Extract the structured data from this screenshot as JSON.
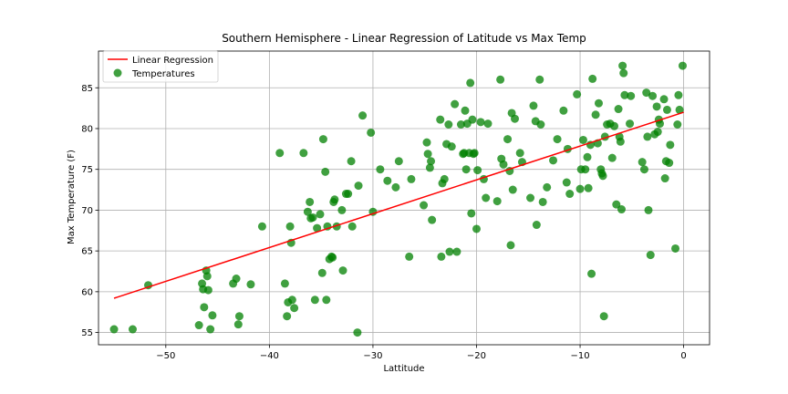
{
  "chart_data": {
    "type": "scatter",
    "title": "Southern Hemisphere - Linear Regression of Latitude vs Max Temp",
    "xlabel": "Lattitude",
    "ylabel": "Max Temperature (F)",
    "xlim": [
      -56.5,
      2.5
    ],
    "ylim": [
      53.5,
      89.5
    ],
    "xticks": [
      -50,
      -40,
      -30,
      -20,
      -10,
      0
    ],
    "yticks": [
      55,
      60,
      65,
      70,
      75,
      80,
      85
    ],
    "grid": true,
    "legend_position": "top-left",
    "legend": [
      "Linear Regression",
      "Temperatures"
    ],
    "colors": {
      "points": "#008000",
      "regression": "#ff0000"
    },
    "regression": {
      "x": [
        -55,
        0
      ],
      "y": [
        59.2,
        82.0
      ]
    },
    "series": [
      {
        "name": "Temperatures",
        "points": [
          [
            -55.0,
            55.4
          ],
          [
            -53.2,
            55.4
          ],
          [
            -51.7,
            60.8
          ],
          [
            -46.8,
            55.9
          ],
          [
            -46.5,
            61.0
          ],
          [
            -46.4,
            60.3
          ],
          [
            -46.3,
            58.1
          ],
          [
            -46.1,
            62.6
          ],
          [
            -46.0,
            61.9
          ],
          [
            -45.9,
            60.2
          ],
          [
            -45.7,
            55.4
          ],
          [
            -45.5,
            57.1
          ],
          [
            -43.5,
            61.0
          ],
          [
            -43.2,
            61.6
          ],
          [
            -43.0,
            56.0
          ],
          [
            -42.9,
            57.0
          ],
          [
            -41.8,
            60.9
          ],
          [
            -40.7,
            68.0
          ],
          [
            -39.0,
            77.0
          ],
          [
            -38.5,
            61.0
          ],
          [
            -38.3,
            57.0
          ],
          [
            -38.2,
            58.7
          ],
          [
            -38.0,
            68.0
          ],
          [
            -37.9,
            66.0
          ],
          [
            -37.8,
            59.0
          ],
          [
            -37.6,
            58.0
          ],
          [
            -36.7,
            77.0
          ],
          [
            -36.3,
            69.8
          ],
          [
            -36.1,
            71.0
          ],
          [
            -36.0,
            69.0
          ],
          [
            -35.8,
            69.1
          ],
          [
            -35.6,
            59.0
          ],
          [
            -35.4,
            67.8
          ],
          [
            -35.1,
            69.5
          ],
          [
            -34.9,
            62.3
          ],
          [
            -34.8,
            78.7
          ],
          [
            -34.6,
            74.7
          ],
          [
            -34.5,
            59.0
          ],
          [
            -34.4,
            68.0
          ],
          [
            -34.2,
            64.0
          ],
          [
            -34.0,
            64.3
          ],
          [
            -33.9,
            64.2
          ],
          [
            -33.8,
            71.0
          ],
          [
            -33.7,
            71.3
          ],
          [
            -33.5,
            68.0
          ],
          [
            -33.0,
            70.0
          ],
          [
            -32.9,
            62.6
          ],
          [
            -32.6,
            72.0
          ],
          [
            -32.4,
            72.0
          ],
          [
            -32.1,
            76.0
          ],
          [
            -32.0,
            68.0
          ],
          [
            -31.5,
            55.0
          ],
          [
            -31.4,
            73.0
          ],
          [
            -31.0,
            81.6
          ],
          [
            -30.2,
            79.5
          ],
          [
            -30.0,
            69.8
          ],
          [
            -29.3,
            75.0
          ],
          [
            -28.6,
            73.6
          ],
          [
            -27.8,
            72.8
          ],
          [
            -27.5,
            76.0
          ],
          [
            -26.5,
            64.3
          ],
          [
            -26.3,
            73.8
          ],
          [
            -25.1,
            70.6
          ],
          [
            -24.8,
            78.3
          ],
          [
            -24.7,
            76.9
          ],
          [
            -24.5,
            75.2
          ],
          [
            -24.4,
            76.0
          ],
          [
            -24.3,
            68.8
          ],
          [
            -23.5,
            81.1
          ],
          [
            -23.4,
            64.3
          ],
          [
            -23.3,
            73.3
          ],
          [
            -23.1,
            73.8
          ],
          [
            -22.9,
            78.1
          ],
          [
            -22.7,
            80.5
          ],
          [
            -22.6,
            64.9
          ],
          [
            -22.4,
            77.8
          ],
          [
            -22.1,
            83.0
          ],
          [
            -21.9,
            64.9
          ],
          [
            -21.5,
            80.5
          ],
          [
            -21.3,
            76.9
          ],
          [
            -21.2,
            77.0
          ],
          [
            -21.1,
            82.2
          ],
          [
            -21.0,
            75.0
          ],
          [
            -20.9,
            80.6
          ],
          [
            -20.7,
            77.0
          ],
          [
            -20.6,
            85.6
          ],
          [
            -20.5,
            69.6
          ],
          [
            -20.4,
            81.1
          ],
          [
            -20.3,
            76.9
          ],
          [
            -20.2,
            77.0
          ],
          [
            -20.0,
            67.7
          ],
          [
            -19.9,
            74.9
          ],
          [
            -19.6,
            80.8
          ],
          [
            -19.3,
            73.8
          ],
          [
            -19.1,
            71.5
          ],
          [
            -18.9,
            80.6
          ],
          [
            -18.0,
            71.1
          ],
          [
            -17.7,
            86.0
          ],
          [
            -17.6,
            76.3
          ],
          [
            -17.4,
            75.6
          ],
          [
            -17.0,
            78.7
          ],
          [
            -16.8,
            74.8
          ],
          [
            -16.7,
            65.7
          ],
          [
            -16.6,
            81.9
          ],
          [
            -16.5,
            72.5
          ],
          [
            -16.3,
            81.2
          ],
          [
            -15.8,
            77.0
          ],
          [
            -15.6,
            75.9
          ],
          [
            -14.8,
            71.5
          ],
          [
            -14.5,
            82.8
          ],
          [
            -14.3,
            80.9
          ],
          [
            -14.2,
            68.2
          ],
          [
            -13.9,
            86.0
          ],
          [
            -13.8,
            80.5
          ],
          [
            -13.6,
            71.0
          ],
          [
            -13.2,
            72.8
          ],
          [
            -12.6,
            76.1
          ],
          [
            -12.2,
            78.7
          ],
          [
            -11.6,
            82.2
          ],
          [
            -11.3,
            73.4
          ],
          [
            -11.2,
            77.5
          ],
          [
            -11.0,
            72.0
          ],
          [
            -10.3,
            84.2
          ],
          [
            -10.0,
            72.6
          ],
          [
            -9.9,
            75.0
          ],
          [
            -9.7,
            78.6
          ],
          [
            -9.5,
            75.0
          ],
          [
            -9.3,
            76.5
          ],
          [
            -9.2,
            72.7
          ],
          [
            -9.0,
            78.0
          ],
          [
            -8.9,
            62.2
          ],
          [
            -8.8,
            86.1
          ],
          [
            -8.5,
            81.7
          ],
          [
            -8.3,
            78.2
          ],
          [
            -8.2,
            83.1
          ],
          [
            -8.0,
            75.0
          ],
          [
            -7.9,
            74.5
          ],
          [
            -7.8,
            74.2
          ],
          [
            -7.7,
            57.0
          ],
          [
            -7.6,
            79.0
          ],
          [
            -7.4,
            80.5
          ],
          [
            -7.1,
            80.6
          ],
          [
            -6.9,
            76.4
          ],
          [
            -6.7,
            80.3
          ],
          [
            -6.5,
            70.7
          ],
          [
            -6.3,
            82.4
          ],
          [
            -6.2,
            79.0
          ],
          [
            -6.1,
            78.4
          ],
          [
            -6.0,
            70.1
          ],
          [
            -5.9,
            87.7
          ],
          [
            -5.8,
            86.8
          ],
          [
            -5.7,
            84.1
          ],
          [
            -5.2,
            80.6
          ],
          [
            -5.1,
            84.0
          ],
          [
            -4.0,
            75.9
          ],
          [
            -3.8,
            75.0
          ],
          [
            -3.6,
            84.4
          ],
          [
            -3.5,
            79.0
          ],
          [
            -3.4,
            70.0
          ],
          [
            -3.2,
            64.5
          ],
          [
            -3.0,
            84.0
          ],
          [
            -2.8,
            79.3
          ],
          [
            -2.6,
            82.7
          ],
          [
            -2.5,
            79.6
          ],
          [
            -2.4,
            81.1
          ],
          [
            -2.3,
            80.6
          ],
          [
            -1.9,
            83.6
          ],
          [
            -1.8,
            73.9
          ],
          [
            -1.7,
            76.0
          ],
          [
            -1.6,
            82.3
          ],
          [
            -1.4,
            75.8
          ],
          [
            -1.3,
            78.0
          ],
          [
            -0.8,
            65.3
          ],
          [
            -0.6,
            80.5
          ],
          [
            -0.5,
            84.1
          ],
          [
            -0.4,
            82.3
          ],
          [
            -0.1,
            87.7
          ]
        ]
      }
    ]
  }
}
